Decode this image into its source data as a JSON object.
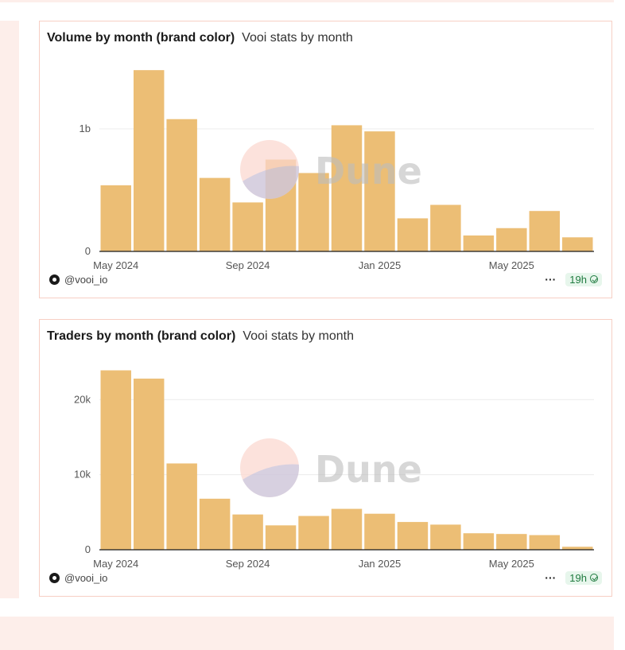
{
  "colors": {
    "bar": "#ecbe75",
    "grid": "#ececec",
    "axis": "#1a1a1a",
    "watermark_top": "#fcd7cf",
    "watermark_bottom": "#c9c4dc"
  },
  "watermark": {
    "text": "Dune",
    "icon": "dune-logo-icon"
  },
  "cards": [
    {
      "title": "Volume by month (brand color)",
      "subtitle": "Vooi stats by month",
      "author": "@vooi_io",
      "more_icon": "more-dots-icon",
      "more_label": "···",
      "age": "19h",
      "status_icon": "check-circle-icon"
    },
    {
      "title": "Traders by month (brand color)",
      "subtitle": "Vooi stats by month",
      "author": "@vooi_io",
      "more_icon": "more-dots-icon",
      "more_label": "···",
      "age": "19h",
      "status_icon": "check-circle-icon"
    }
  ],
  "chart_data": [
    {
      "type": "bar",
      "title": "Volume by month (brand color)",
      "subtitle": "Vooi stats by month",
      "xlabel": "",
      "ylabel": "",
      "categories": [
        "2024-05",
        "2024-06",
        "2024-07",
        "2024-08",
        "2024-09",
        "2024-10",
        "2024-11",
        "2024-12",
        "2025-01",
        "2025-02",
        "2025-03",
        "2025-04",
        "2025-05",
        "2025-06",
        "2025-07"
      ],
      "values": [
        540000000,
        1480000000,
        1080000000,
        600000000,
        400000000,
        750000000,
        640000000,
        1030000000,
        980000000,
        270000000,
        380000000,
        130000000,
        190000000,
        330000000,
        115000000
      ],
      "ylim": [
        0,
        1520000000
      ],
      "y_ticks": [
        {
          "value": 0,
          "label": "0"
        },
        {
          "value": 1000000000,
          "label": "1b"
        }
      ],
      "x_ticks": [
        {
          "category": "2024-05",
          "label": "May 2024"
        },
        {
          "category": "2024-09",
          "label": "Sep 2024"
        },
        {
          "category": "2025-01",
          "label": "Jan 2025"
        },
        {
          "category": "2025-05",
          "label": "May 2025"
        }
      ],
      "grid": true,
      "legend": "none"
    },
    {
      "type": "bar",
      "title": "Traders by month (brand color)",
      "subtitle": "Vooi stats by month",
      "xlabel": "",
      "ylabel": "",
      "categories": [
        "2024-05",
        "2024-06",
        "2024-07",
        "2024-08",
        "2024-09",
        "2024-10",
        "2024-11",
        "2024-12",
        "2025-01",
        "2025-02",
        "2025-03",
        "2025-04",
        "2025-05",
        "2025-06",
        "2025-07"
      ],
      "values": [
        23900,
        22800,
        11500,
        6800,
        4700,
        3250,
        4500,
        5450,
        4800,
        3700,
        3350,
        2200,
        2100,
        1950,
        400
      ],
      "ylim": [
        0,
        24800
      ],
      "y_ticks": [
        {
          "value": 0,
          "label": "0"
        },
        {
          "value": 10000,
          "label": "10k"
        },
        {
          "value": 20000,
          "label": "20k"
        }
      ],
      "x_ticks": [
        {
          "category": "2024-05",
          "label": "May 2024"
        },
        {
          "category": "2024-09",
          "label": "Sep 2024"
        },
        {
          "category": "2025-01",
          "label": "Jan 2025"
        },
        {
          "category": "2025-05",
          "label": "May 2025"
        }
      ],
      "grid": true,
      "legend": "none"
    }
  ]
}
